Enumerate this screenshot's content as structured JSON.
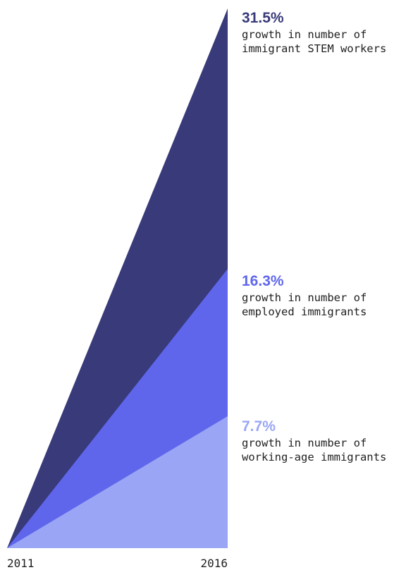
{
  "chart_data": {
    "type": "area",
    "title": "",
    "xlabel": "",
    "ylabel": "",
    "x": [
      "2011",
      "2016"
    ],
    "ylim": [
      0,
      31.5
    ],
    "series": [
      {
        "value": "31.5%",
        "amount": 31.5,
        "desc_line1": "growth in number of",
        "desc_line2": "immigrant STEM workers",
        "color": "#383a79",
        "label_color": "#383a79"
      },
      {
        "value": "16.3%",
        "amount": 16.3,
        "desc_line1": "growth in number of",
        "desc_line2": "employed immigrants",
        "color": "#5f66ec",
        "label_color": "#5f66ec"
      },
      {
        "value": "7.7%",
        "amount": 7.7,
        "desc_line1": "growth in number of",
        "desc_line2": "working-age immigrants",
        "color": "#9aa6f5",
        "label_color": "#9aa6f5"
      }
    ],
    "grid": false,
    "legend": "direct labels right"
  }
}
